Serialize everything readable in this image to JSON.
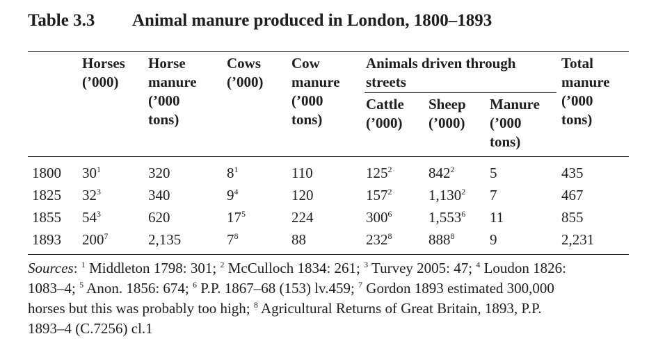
{
  "table": {
    "number": "Table 3.3",
    "title": "Animal manure produced in London, 1800–1893",
    "headers": {
      "horses": [
        "Horses",
        "(’000)"
      ],
      "horse_manure": [
        "Horse",
        "manure",
        "(’000",
        "tons)"
      ],
      "cows": [
        "Cows",
        "(’000)"
      ],
      "cow_manure": [
        "Cow",
        "manure",
        "(’000",
        "tons)"
      ],
      "driven_group": [
        "Animals driven through",
        "streets"
      ],
      "cattle": [
        "Cattle",
        "(’000)"
      ],
      "sheep": [
        "Sheep",
        "(’000)"
      ],
      "manure": [
        "Manure",
        "(’000",
        "tons)"
      ],
      "total": [
        "Total",
        "manure",
        "(’000",
        "tons)"
      ]
    },
    "rows": [
      {
        "year": "1800",
        "horses": "30",
        "horses_note": "1",
        "horse_manure": "320",
        "cows": "8",
        "cows_note": "1",
        "cow_manure": "110",
        "cattle": "125",
        "cattle_note": "2",
        "sheep": "842",
        "sheep_note": "2",
        "manure": "5",
        "total": "435"
      },
      {
        "year": "1825",
        "horses": "32",
        "horses_note": "3",
        "horse_manure": "340",
        "cows": "9",
        "cows_note": "4",
        "cow_manure": "120",
        "cattle": "157",
        "cattle_note": "2",
        "sheep": "1,130",
        "sheep_note": "2",
        "manure": "7",
        "total": "467"
      },
      {
        "year": "1855",
        "horses": "54",
        "horses_note": "3",
        "horse_manure": "620",
        "cows": "17",
        "cows_note": "5",
        "cow_manure": "224",
        "cattle": "300",
        "cattle_note": "6",
        "sheep": "1,553",
        "sheep_note": "6",
        "manure": "11",
        "total": "855"
      },
      {
        "year": "1893",
        "horses": "200",
        "horses_note": "7",
        "horse_manure": "2,135",
        "cows": "7",
        "cows_note": "8",
        "cow_manure": "88",
        "cattle": "232",
        "cattle_note": "8",
        "sheep": "888",
        "sheep_note": "8",
        "manure": "9",
        "total": "2,231"
      }
    ]
  },
  "sources": {
    "label": "Sources",
    "lines": [
      {
        "segments": [
          {
            "sup": "1",
            "text": " Middleton 1798: 301; "
          },
          {
            "sup": "2",
            "text": " McCulloch 1834: 261; "
          },
          {
            "sup": "3",
            "text": " Turvey 2005: 47; "
          },
          {
            "sup": "4",
            "text": " Loudon 1826:"
          }
        ]
      },
      {
        "segments": [
          {
            "sup": "",
            "text": "1083–4; "
          },
          {
            "sup": "5",
            "text": " Anon. 1856: 674; "
          },
          {
            "sup": "6",
            "text": " P.P. 1867–68 (153) lv.459; "
          },
          {
            "sup": "7",
            "text": " Gordon 1893 estimated 300,000"
          }
        ]
      },
      {
        "segments": [
          {
            "sup": "",
            "text": "horses but this was probably too high; "
          },
          {
            "sup": "8",
            "text": " Agricultural Returns of Great Britain, 1893, P.P."
          }
        ]
      },
      {
        "segments": [
          {
            "sup": "",
            "text": "1893–4 (C.7256) cl.1"
          }
        ]
      }
    ]
  }
}
